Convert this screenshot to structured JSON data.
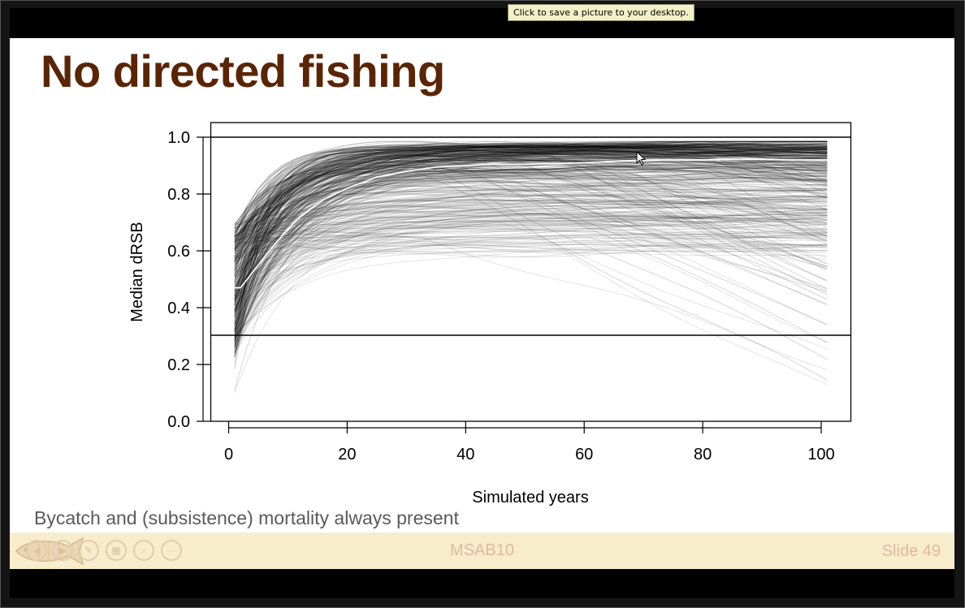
{
  "tooltip": "Click to save a picture to your desktop.",
  "slide": {
    "title": "No directed fishing",
    "subtitle": "Bycatch and (subsistence) mortality always present",
    "footer_center": "MSAB10",
    "footer_right": "Slide 49"
  },
  "icons": [
    "fish-logo-icon",
    "prev-icon",
    "next-icon",
    "pen-icon",
    "slides-icon",
    "zoom-icon",
    "more-icon"
  ],
  "colors": {
    "title": "#5a2505",
    "footer_bg": "#f7eccb",
    "footer_text": "#e2b8a0",
    "median_line": "#ffffff"
  },
  "chart_data": {
    "type": "line",
    "xlabel": "Simulated years",
    "ylabel": "Median dRSB",
    "xlim": [
      0,
      101
    ],
    "ylim": [
      0,
      1.0
    ],
    "xticks": [
      0,
      20,
      40,
      60,
      80,
      100
    ],
    "yticks": [
      0.0,
      0.2,
      0.4,
      0.6,
      0.8,
      1.0
    ],
    "reference_lines": [
      1.0,
      0.3
    ],
    "series": [
      {
        "role": "median",
        "color": "#ffffff",
        "x": [
          1,
          2,
          5,
          8,
          12,
          16,
          20,
          25,
          30,
          35,
          40,
          45,
          50,
          55,
          60,
          65,
          70,
          75,
          80,
          85,
          90,
          95,
          101
        ],
        "values": [
          0.47,
          0.47,
          0.55,
          0.63,
          0.72,
          0.78,
          0.82,
          0.86,
          0.88,
          0.895,
          0.9,
          0.905,
          0.905,
          0.907,
          0.91,
          0.915,
          0.92,
          0.92,
          0.92,
          0.922,
          0.922,
          0.92,
          0.92
        ]
      },
      {
        "role": "trajectory-ensemble",
        "description": "hundreds of individual simulation trajectories, drawn semi-transparent black",
        "color": "#000000",
        "start_range": [
          0.04,
          0.74
        ],
        "end_range": [
          0.0,
          0.98
        ]
      }
    ]
  }
}
